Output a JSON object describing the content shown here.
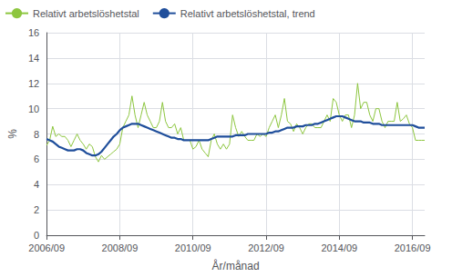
{
  "chart_data": {
    "type": "line",
    "xlabel": "År/månad",
    "ylabel": "%",
    "categories": [
      "2006/09",
      null,
      null,
      null,
      null,
      null,
      null,
      null,
      null,
      null,
      null,
      null,
      null,
      null,
      null,
      null,
      null,
      null,
      null,
      null,
      null,
      null,
      null,
      null,
      "2008/09",
      null,
      null,
      null,
      null,
      null,
      null,
      null,
      null,
      null,
      null,
      null,
      null,
      null,
      null,
      null,
      null,
      null,
      null,
      null,
      null,
      null,
      null,
      null,
      "2010/09",
      null,
      null,
      null,
      null,
      null,
      null,
      null,
      null,
      null,
      null,
      null,
      null,
      null,
      null,
      null,
      null,
      null,
      null,
      null,
      null,
      null,
      null,
      null,
      "2012/09",
      null,
      null,
      null,
      null,
      null,
      null,
      null,
      null,
      null,
      null,
      null,
      null,
      null,
      null,
      null,
      null,
      null,
      null,
      null,
      null,
      null,
      null,
      null,
      "2014/09",
      null,
      null,
      null,
      null,
      null,
      null,
      null,
      null,
      null,
      null,
      null,
      null,
      null,
      null,
      null,
      null,
      null,
      null,
      null,
      null,
      null,
      null,
      null,
      "2016/09",
      null,
      null,
      null,
      null
    ],
    "series": [
      {
        "name": "Relativt arbetslöshetstal",
        "color": "#8dc63f",
        "values": [
          7.1,
          7.5,
          8.6,
          7.8,
          8.0,
          7.8,
          7.8,
          7.5,
          7.0,
          7.5,
          8.0,
          7.5,
          7.2,
          6.8,
          7.2,
          7.0,
          6.2,
          5.8,
          6.3,
          6.0,
          6.2,
          6.4,
          6.6,
          6.8,
          7.2,
          8.5,
          9.0,
          9.5,
          11.0,
          9.5,
          8.5,
          9.5,
          10.5,
          9.5,
          9.0,
          8.5,
          8.5,
          9.0,
          10.5,
          9.0,
          8.5,
          8.5,
          8.8,
          8.0,
          8.5,
          7.5,
          7.5,
          7.5,
          6.8,
          7.0,
          7.5,
          6.8,
          6.5,
          6.2,
          7.5,
          8.0,
          7.2,
          6.8,
          7.2,
          6.8,
          7.2,
          9.5,
          8.5,
          7.8,
          8.2,
          7.8,
          7.5,
          7.5,
          7.5,
          8.0,
          7.8,
          8.0,
          7.8,
          8.5,
          9.0,
          9.5,
          8.5,
          9.5,
          10.8,
          9.0,
          8.8,
          8.2,
          8.8,
          8.5,
          8.0,
          8.5,
          8.8,
          8.8,
          8.5,
          8.5,
          8.5,
          9.0,
          9.5,
          9.0,
          10.8,
          10.5,
          9.5,
          9.0,
          9.5,
          9.5,
          8.5,
          9.5,
          12.0,
          10.0,
          10.5,
          10.5,
          9.5,
          9.0,
          10.0,
          10.0,
          9.0,
          8.5,
          9.0,
          9.0,
          9.0,
          10.5,
          9.0,
          9.2,
          9.5,
          8.8,
          8.5,
          7.5,
          7.5,
          7.5,
          7.5
        ]
      },
      {
        "name": "Relativt arbetslöshetstal, trend",
        "color": "#1f4e9b",
        "values": [
          7.6,
          7.5,
          7.4,
          7.2,
          7.0,
          6.9,
          6.8,
          6.7,
          6.7,
          6.7,
          6.8,
          6.8,
          6.7,
          6.5,
          6.4,
          6.3,
          6.3,
          6.4,
          6.6,
          6.9,
          7.2,
          7.5,
          7.8,
          8.0,
          8.3,
          8.5,
          8.6,
          8.7,
          8.8,
          8.8,
          8.8,
          8.7,
          8.6,
          8.5,
          8.4,
          8.3,
          8.2,
          8.1,
          8.0,
          7.9,
          7.8,
          7.7,
          7.7,
          7.6,
          7.6,
          7.5,
          7.5,
          7.5,
          7.5,
          7.5,
          7.5,
          7.5,
          7.5,
          7.5,
          7.6,
          7.7,
          7.8,
          7.8,
          7.8,
          7.8,
          7.8,
          7.8,
          7.9,
          7.9,
          7.9,
          7.9,
          8.0,
          8.0,
          8.0,
          8.0,
          8.0,
          8.0,
          8.0,
          8.1,
          8.1,
          8.2,
          8.2,
          8.3,
          8.4,
          8.5,
          8.5,
          8.5,
          8.6,
          8.6,
          8.6,
          8.7,
          8.7,
          8.7,
          8.8,
          8.8,
          8.9,
          9.0,
          9.1,
          9.2,
          9.3,
          9.4,
          9.4,
          9.4,
          9.3,
          9.2,
          9.1,
          9.0,
          9.0,
          9.0,
          8.9,
          8.9,
          8.9,
          8.8,
          8.8,
          8.8,
          8.7,
          8.7,
          8.7,
          8.7,
          8.7,
          8.7,
          8.7,
          8.7,
          8.7,
          8.7,
          8.7,
          8.6,
          8.5,
          8.5,
          8.5
        ]
      }
    ],
    "ylim": [
      0,
      16
    ],
    "yticks": [
      0,
      2,
      4,
      6,
      8,
      10,
      12,
      14,
      16
    ],
    "grid": true,
    "legend": "upper left"
  }
}
